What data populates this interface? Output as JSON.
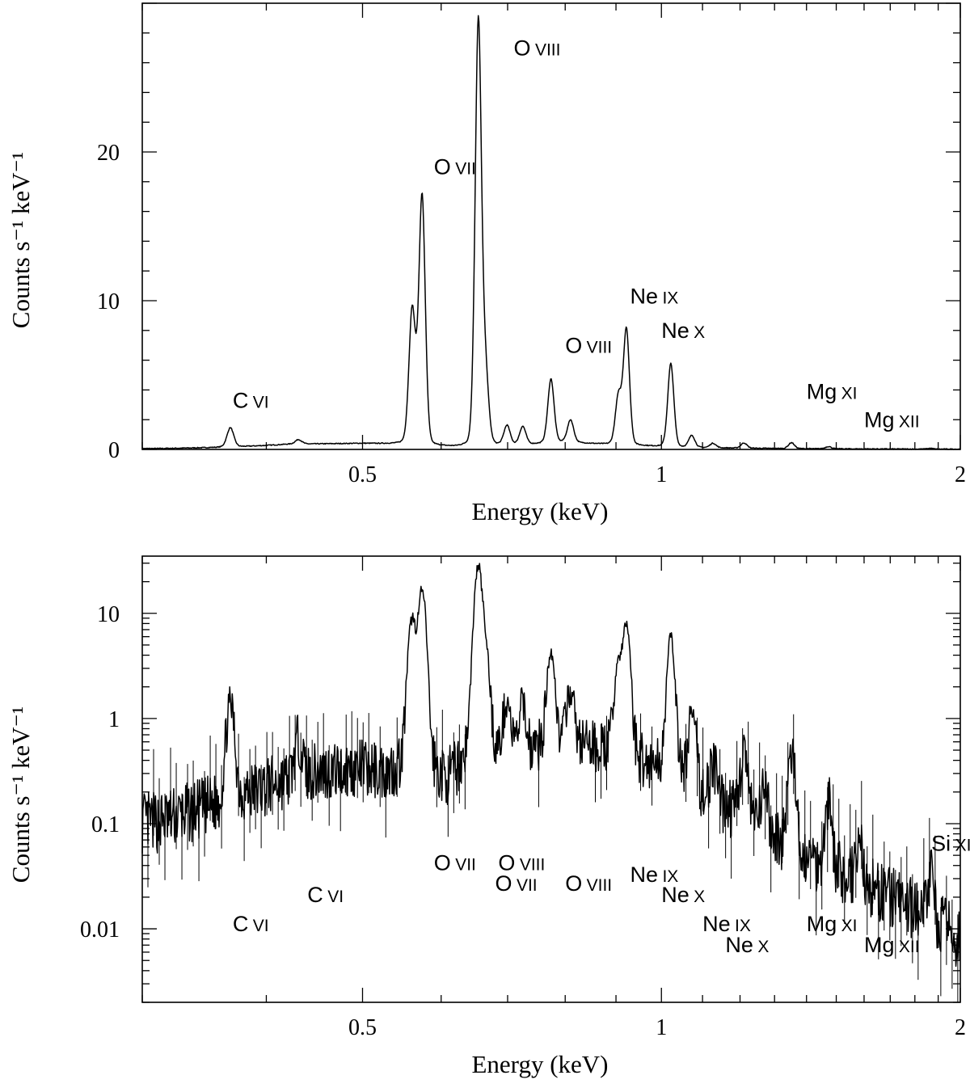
{
  "chart_data": [
    {
      "type": "line",
      "panel": "top",
      "scale": "linear",
      "xscale": "log",
      "xlim": [
        0.3,
        2.0
      ],
      "ylim": [
        0,
        30
      ],
      "xlabel": "Energy (keV)",
      "ylabel": "Counts s⁻¹ keV⁻¹",
      "xticks": [
        {
          "value": 0.5,
          "label": "0.5"
        },
        {
          "value": 1,
          "label": "1"
        },
        {
          "value": 2,
          "label": "2"
        }
      ],
      "yticks": [
        {
          "value": 0,
          "label": "0"
        },
        {
          "value": 10,
          "label": "10"
        },
        {
          "value": 20,
          "label": "20"
        }
      ],
      "continuum": [
        [
          0.31,
          0.06
        ],
        [
          0.38,
          0.2
        ],
        [
          0.42,
          0.35
        ],
        [
          0.5,
          0.4
        ],
        [
          0.55,
          0.35
        ],
        [
          0.62,
          0.15
        ],
        [
          0.8,
          0.5
        ],
        [
          0.95,
          0.25
        ],
        [
          1.1,
          0.12
        ],
        [
          1.4,
          0.05
        ],
        [
          2.0,
          0.02
        ]
      ],
      "lines": [
        {
          "e": 0.368,
          "amp": 1.3
        },
        {
          "e": 0.431,
          "amp": 0.3
        },
        {
          "e": 0.561,
          "amp": 9.0
        },
        {
          "e": 0.574,
          "amp": 16.8
        },
        {
          "e": 0.654,
          "amp": 28.5
        },
        {
          "e": 0.665,
          "amp": 4.6
        },
        {
          "e": 0.699,
          "amp": 1.3
        },
        {
          "e": 0.725,
          "amp": 1.2
        },
        {
          "e": 0.774,
          "amp": 4.3
        },
        {
          "e": 0.81,
          "amp": 1.5
        },
        {
          "e": 0.905,
          "amp": 3.2
        },
        {
          "e": 0.922,
          "amp": 7.8
        },
        {
          "e": 1.022,
          "amp": 5.6
        },
        {
          "e": 1.073,
          "amp": 0.8
        },
        {
          "e": 1.127,
          "amp": 0.3
        },
        {
          "e": 1.211,
          "amp": 0.35
        },
        {
          "e": 1.352,
          "amp": 0.4
        },
        {
          "e": 1.473,
          "amp": 0.15
        },
        {
          "e": 1.865,
          "amp": 0.05
        }
      ],
      "annotations": [
        {
          "element": "C",
          "ion": "VI",
          "x": 0.37,
          "y": 2.8
        },
        {
          "element": "O",
          "ion": "VII",
          "x": 0.59,
          "y": 18.5
        },
        {
          "element": "O",
          "ion": "VIII",
          "x": 0.71,
          "y": 26.5
        },
        {
          "element": "O",
          "ion": "VIII",
          "x": 0.8,
          "y": 6.5
        },
        {
          "element": "Ne",
          "ion": "IX",
          "x": 0.93,
          "y": 9.8
        },
        {
          "element": "Ne",
          "ion": "X",
          "x": 1.0,
          "y": 7.5
        },
        {
          "element": "Mg",
          "ion": "XI",
          "x": 1.4,
          "y": 3.4
        },
        {
          "element": "Mg",
          "ion": "XII",
          "x": 1.6,
          "y": 1.5
        }
      ]
    },
    {
      "type": "line",
      "panel": "bottom",
      "scale": "log",
      "xscale": "log",
      "xlim": [
        0.3,
        2.0
      ],
      "ylim": [
        0.002,
        35
      ],
      "xlabel": "Energy (keV)",
      "ylabel": "Counts s⁻¹ keV⁻¹",
      "xticks": [
        {
          "value": 0.5,
          "label": "0.5"
        },
        {
          "value": 1,
          "label": "1"
        },
        {
          "value": 2,
          "label": "2"
        }
      ],
      "yticks": [
        {
          "value": 0.01,
          "label": "0.01"
        },
        {
          "value": 0.1,
          "label": "0.1"
        },
        {
          "value": 1,
          "label": "1"
        },
        {
          "value": 10,
          "label": "10"
        }
      ],
      "continuum": [
        [
          0.31,
          0.1
        ],
        [
          0.36,
          0.15
        ],
        [
          0.4,
          0.22
        ],
        [
          0.45,
          0.3
        ],
        [
          0.5,
          0.32
        ],
        [
          0.54,
          0.25
        ],
        [
          0.6,
          0.17
        ],
        [
          0.64,
          0.25
        ],
        [
          0.7,
          0.4
        ],
        [
          0.8,
          0.6
        ],
        [
          0.9,
          0.45
        ],
        [
          1.0,
          0.3
        ],
        [
          1.1,
          0.18
        ],
        [
          1.2,
          0.12
        ],
        [
          1.3,
          0.07
        ],
        [
          1.4,
          0.045
        ],
        [
          1.6,
          0.025
        ],
        [
          1.8,
          0.015
        ],
        [
          2.0,
          0.008
        ]
      ],
      "lines": [
        {
          "e": 0.368,
          "amp": 1.2
        },
        {
          "e": 0.431,
          "amp": 0.35
        },
        {
          "e": 0.561,
          "amp": 8.5
        },
        {
          "e": 0.574,
          "amp": 16.0
        },
        {
          "e": 0.654,
          "amp": 27.5
        },
        {
          "e": 0.665,
          "amp": 4.0
        },
        {
          "e": 0.699,
          "amp": 1.0
        },
        {
          "e": 0.725,
          "amp": 0.9
        },
        {
          "e": 0.774,
          "amp": 3.8
        },
        {
          "e": 0.81,
          "amp": 1.2
        },
        {
          "e": 0.905,
          "amp": 3.0
        },
        {
          "e": 0.922,
          "amp": 7.4
        },
        {
          "e": 1.022,
          "amp": 5.5
        },
        {
          "e": 1.073,
          "amp": 0.9
        },
        {
          "e": 1.127,
          "amp": 0.2
        },
        {
          "e": 1.211,
          "amp": 0.38
        },
        {
          "e": 1.27,
          "amp": 0.12
        },
        {
          "e": 1.352,
          "amp": 0.38
        },
        {
          "e": 1.473,
          "amp": 0.13
        },
        {
          "e": 1.58,
          "amp": 0.04
        },
        {
          "e": 1.865,
          "amp": 0.02
        }
      ],
      "annotations": [
        {
          "element": "C",
          "ion": "VI",
          "x": 0.37,
          "y": 0.0095
        },
        {
          "element": "C",
          "ion": "VI",
          "x": 0.44,
          "y": 0.018
        },
        {
          "element": "O",
          "ion": "VII",
          "x": 0.59,
          "y": 0.036
        },
        {
          "element": "O",
          "ion": "VIII",
          "x": 0.685,
          "y": 0.036
        },
        {
          "element": "O",
          "ion": "VII",
          "x": 0.68,
          "y": 0.023
        },
        {
          "element": "O",
          "ion": "VIII",
          "x": 0.8,
          "y": 0.023
        },
        {
          "element": "Ne",
          "ion": "IX",
          "x": 0.93,
          "y": 0.028
        },
        {
          "element": "Ne",
          "ion": "X",
          "x": 1.0,
          "y": 0.018
        },
        {
          "element": "Ne",
          "ion": "IX",
          "x": 1.1,
          "y": 0.0095
        },
        {
          "element": "Ne",
          "ion": "X",
          "x": 1.16,
          "y": 0.006
        },
        {
          "element": "Mg",
          "ion": "XI",
          "x": 1.4,
          "y": 0.0095
        },
        {
          "element": "Mg",
          "ion": "XII",
          "x": 1.6,
          "y": 0.006
        },
        {
          "element": "Si",
          "ion": "XIII",
          "x": 1.87,
          "y": 0.055
        }
      ]
    }
  ]
}
